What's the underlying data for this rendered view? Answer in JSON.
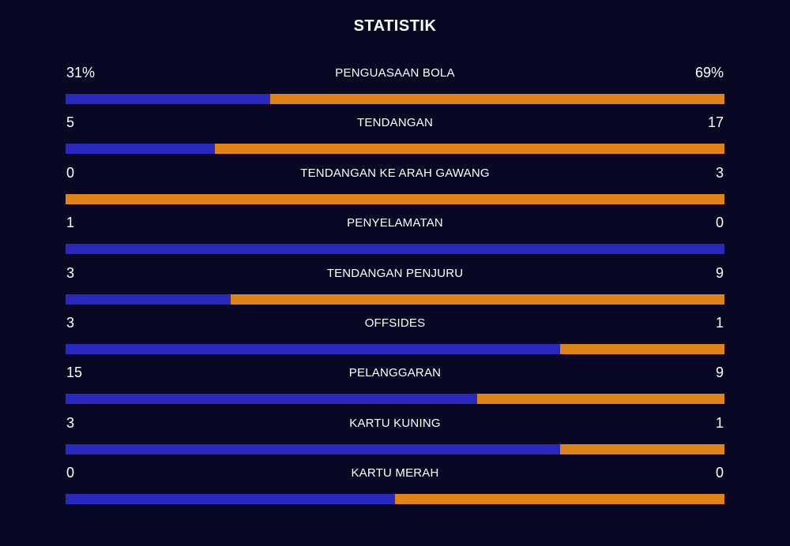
{
  "title": "STATISTIK",
  "colors": {
    "background": "#080824",
    "home": "#2929c0",
    "away": "#df8414",
    "text": "#ffffff"
  },
  "stats": [
    {
      "label": "PENGUASAAN BOLA",
      "home": "31%",
      "away": "69%",
      "home_share": 0.31
    },
    {
      "label": "TENDANGAN",
      "home": "5",
      "away": "17",
      "home_share": 0.227
    },
    {
      "label": "TENDANGAN KE ARAH GAWANG",
      "home": "0",
      "away": "3",
      "home_share": 0.0
    },
    {
      "label": "PENYELAMATAN",
      "home": "1",
      "away": "0",
      "home_share": 1.0
    },
    {
      "label": "TENDANGAN PENJURU",
      "home": "3",
      "away": "9",
      "home_share": 0.25
    },
    {
      "label": "OFFSIDES",
      "home": "3",
      "away": "1",
      "home_share": 0.75
    },
    {
      "label": "PELANGGARAN",
      "home": "15",
      "away": "9",
      "home_share": 0.625
    },
    {
      "label": "KARTU KUNING",
      "home": "3",
      "away": "1",
      "home_share": 0.75
    },
    {
      "label": "KARTU MERAH",
      "home": "0",
      "away": "0",
      "home_share": 0.5
    }
  ]
}
